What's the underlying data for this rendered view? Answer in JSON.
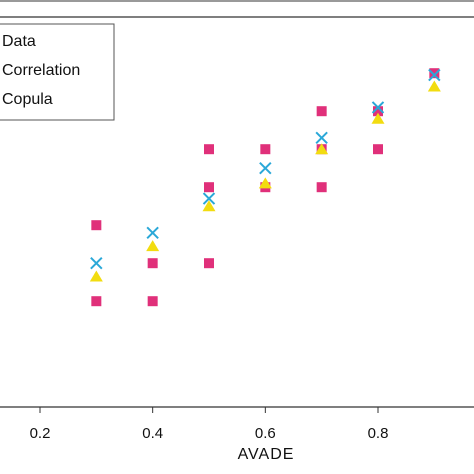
{
  "chart_data": {
    "type": "scatter",
    "xlabel": "AVADE",
    "ylabel": "",
    "title": "",
    "xlim": [
      0.13,
      0.97
    ],
    "ylim": [
      0.0,
      1.0
    ],
    "x_ticks": [
      "0.2",
      "0.4",
      "0.6",
      "0.8"
    ],
    "x_tick_values": [
      0.2,
      0.4,
      0.6,
      0.8
    ],
    "grid": false,
    "legend_position": "top-left",
    "series": [
      {
        "name": "Data",
        "marker": "square",
        "color": "#e0307a",
        "points": [
          {
            "x": 0.3,
            "y": 0.46
          },
          {
            "x": 0.3,
            "y": 0.26
          },
          {
            "x": 0.4,
            "y": 0.36
          },
          {
            "x": 0.4,
            "y": 0.26
          },
          {
            "x": 0.5,
            "y": 0.66
          },
          {
            "x": 0.5,
            "y": 0.56
          },
          {
            "x": 0.5,
            "y": 0.36
          },
          {
            "x": 0.6,
            "y": 0.66
          },
          {
            "x": 0.6,
            "y": 0.56
          },
          {
            "x": 0.7,
            "y": 0.76
          },
          {
            "x": 0.7,
            "y": 0.66
          },
          {
            "x": 0.7,
            "y": 0.56
          },
          {
            "x": 0.8,
            "y": 0.76
          },
          {
            "x": 0.8,
            "y": 0.66
          },
          {
            "x": 0.9,
            "y": 0.86
          }
        ]
      },
      {
        "name": "Correlation",
        "marker": "x",
        "color": "#2aa8d8",
        "points": [
          {
            "x": 0.3,
            "y": 0.36
          },
          {
            "x": 0.4,
            "y": 0.44
          },
          {
            "x": 0.5,
            "y": 0.53
          },
          {
            "x": 0.6,
            "y": 0.61
          },
          {
            "x": 0.7,
            "y": 0.69
          },
          {
            "x": 0.8,
            "y": 0.77
          },
          {
            "x": 0.9,
            "y": 0.855
          }
        ]
      },
      {
        "name": "Copula",
        "marker": "triangle",
        "color": "#f2dc10",
        "points": [
          {
            "x": 0.3,
            "y": 0.325
          },
          {
            "x": 0.4,
            "y": 0.405
          },
          {
            "x": 0.5,
            "y": 0.51
          },
          {
            "x": 0.6,
            "y": 0.57
          },
          {
            "x": 0.7,
            "y": 0.66
          },
          {
            "x": 0.8,
            "y": 0.74
          },
          {
            "x": 0.9,
            "y": 0.825
          }
        ]
      }
    ]
  }
}
